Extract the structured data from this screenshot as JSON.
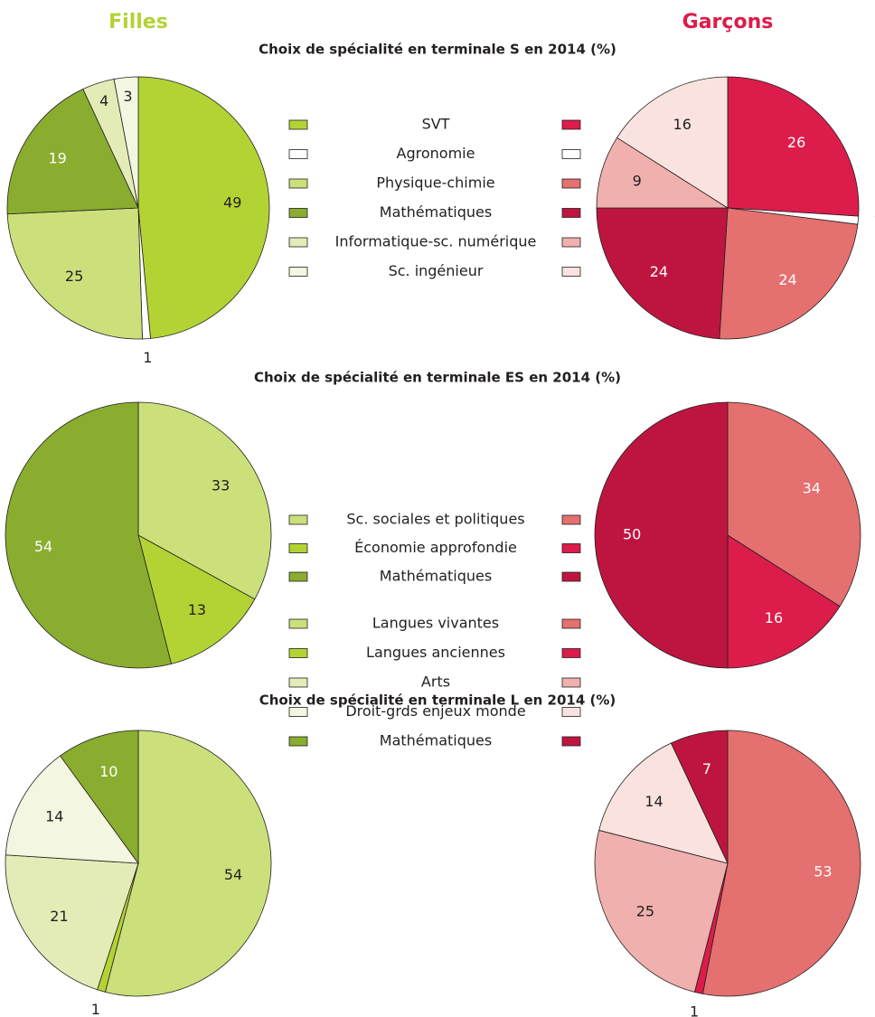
{
  "columns": [
    "Filles",
    "Garçons"
  ],
  "column_colors": [
    "#b3d334",
    "#dc1c4a"
  ],
  "chart_data": [
    {
      "type": "pie",
      "title": "Choix de spécialité en terminale S en 2014 (%)",
      "categories": [
        "SVT",
        "Agronomie",
        "Physique-chimie",
        "Mathématiques",
        "Informatique-sc. numérique",
        "Sc. ingénieur"
      ],
      "series": [
        {
          "colors": [
            "#b3d334",
            "#ffffff",
            "#cbe07a",
            "#8aad2f",
            "#e3ecb7",
            "#f3f6e0"
          ],
          "values": [
            49,
            1,
            25,
            19,
            4,
            3
          ]
        },
        {
          "colors": [
            "#dc1c4a",
            "#ffffff",
            "#e4706f",
            "#be1540",
            "#efb0ae",
            "#fae3df"
          ],
          "values": [
            26,
            1,
            24,
            24,
            9,
            16
          ]
        }
      ]
    },
    {
      "type": "pie",
      "title": "Choix de spécialité en terminale ES en 2014 (%)",
      "categories": [
        "Sc. sociales et politiques",
        "Économie approfondie",
        "Mathématiques"
      ],
      "series": [
        {
          "colors": [
            "#cbe07a",
            "#b3d334",
            "#8aad2f"
          ],
          "values": [
            33,
            13,
            54
          ]
        },
        {
          "colors": [
            "#e4706f",
            "#dc1c4a",
            "#be1540"
          ],
          "values": [
            34,
            16,
            50
          ]
        }
      ]
    },
    {
      "type": "pie",
      "title": "Choix de spécialité en terminale L en 2014 (%)",
      "categories": [
        "Langues vivantes",
        "Langues anciennes",
        "Arts",
        "Droit-grds enjeux monde",
        "Mathématiques"
      ],
      "series": [
        {
          "colors": [
            "#cbe07a",
            "#b3d334",
            "#e3ecb7",
            "#f3f6e0",
            "#8aad2f"
          ],
          "values": [
            54,
            1,
            21,
            14,
            10
          ]
        },
        {
          "colors": [
            "#e4706f",
            "#dc1c4a",
            "#efb0ae",
            "#fae3df",
            "#be1540"
          ],
          "values": [
            53,
            1,
            25,
            14,
            7
          ]
        }
      ]
    }
  ]
}
